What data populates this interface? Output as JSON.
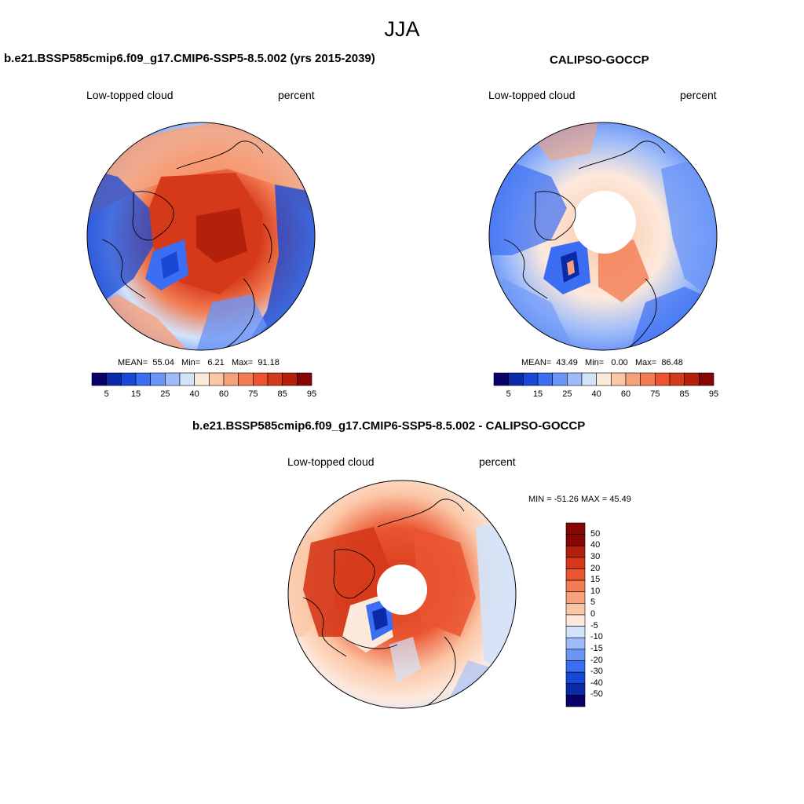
{
  "figure": {
    "title": "JJA"
  },
  "panels": [
    {
      "id": "model",
      "title": "b.e21.BSSP585cmip6.f09_g17.CMIP6-SSP5-8.5.002 (yrs 2015-2039)",
      "left_label": "Low-topped cloud",
      "right_label": "percent",
      "stats": {
        "mean_label": "MEAN=",
        "mean": "55.04",
        "min_label": "Min=",
        "min": "6.21",
        "max_label": "Max=",
        "max": "91.18"
      },
      "colorbar_ticks": [
        "5",
        "15",
        "25",
        "40",
        "60",
        "75",
        "85",
        "95"
      ]
    },
    {
      "id": "obs",
      "title": "CALIPSO-GOCCP",
      "left_label": "Low-topped cloud",
      "right_label": "percent",
      "stats": {
        "mean_label": "MEAN=",
        "mean": "43.49",
        "min_label": "Min=",
        "min": "0.00",
        "max_label": "Max=",
        "max": "86.48"
      },
      "colorbar_ticks": [
        "5",
        "15",
        "25",
        "40",
        "60",
        "75",
        "85",
        "95"
      ]
    },
    {
      "id": "diff",
      "title": "b.e21.BSSP585cmip6.f09_g17.CMIP6-SSP5-8.5.002 - CALIPSO-GOCCP",
      "left_label": "Low-topped cloud",
      "right_label": "percent",
      "minmax": "MIN = -51.26 MAX =  45.49",
      "colorbar_ticks": [
        "50",
        "40",
        "30",
        "20",
        "15",
        "10",
        "5",
        "0",
        "-5",
        "-10",
        "-15",
        "-20",
        "-30",
        "-40",
        "-50"
      ]
    }
  ],
  "colors": {
    "seq_palette": [
      "#08006b",
      "#0b2aa7",
      "#1748d6",
      "#3b6ef2",
      "#6b96f7",
      "#9ebcf9",
      "#d3e3fb",
      "#fde9dc",
      "#fbc6a6",
      "#f7a17a",
      "#f27c53",
      "#ea5530",
      "#d5391a",
      "#b3200b",
      "#870504"
    ],
    "diff_palette": [
      "#870504",
      "#b3200b",
      "#d5391a",
      "#ea5530",
      "#f27c53",
      "#f7a17a",
      "#fbc6a6",
      "#fde9dc",
      "#d3e3fb",
      "#9ebcf9",
      "#6b96f7",
      "#3b6ef2",
      "#1748d6",
      "#0b2aa7",
      "#08006b"
    ]
  }
}
